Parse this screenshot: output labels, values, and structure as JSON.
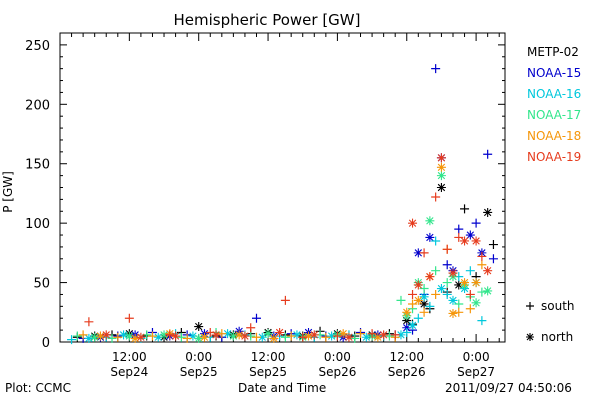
{
  "footer": {
    "left": "Plot: CCMC",
    "center": "Date and Time",
    "right": "2011/09/27 04:50:06"
  },
  "chart_data": {
    "type": "scatter",
    "title": "Hemispheric Power [GW]",
    "ylabel": "P [GW]",
    "xlabel": "Date and Time",
    "ylim": [
      0,
      260
    ],
    "yticks": [
      0,
      50,
      100,
      150,
      200,
      250
    ],
    "xlim": [
      0,
      77
    ],
    "x_units": "hours since Sep 24 00:00",
    "xticks": [
      {
        "x": 12,
        "time": "12:00",
        "date": "Sep24"
      },
      {
        "x": 24,
        "time": "0:00",
        "date": "Sep25"
      },
      {
        "x": 36,
        "time": "12:00",
        "date": "Sep25"
      },
      {
        "x": 48,
        "time": "0:00",
        "date": "Sep26"
      },
      {
        "x": 60,
        "time": "12:00",
        "date": "Sep26"
      },
      {
        "x": 72,
        "time": "0:00",
        "date": "Sep27"
      }
    ],
    "marker_legend": [
      {
        "symbol": "+",
        "label": "south"
      },
      {
        "symbol": "*",
        "label": "north"
      }
    ],
    "series": [
      {
        "name": "METP-02",
        "color": "#000000",
        "south": [
          [
            3,
            4
          ],
          [
            9,
            6
          ],
          [
            15,
            5
          ],
          [
            21,
            8
          ],
          [
            27,
            5
          ],
          [
            33,
            7
          ],
          [
            39,
            6
          ],
          [
            45,
            9
          ],
          [
            51,
            5
          ],
          [
            57,
            7
          ],
          [
            61,
            15
          ],
          [
            64,
            28
          ],
          [
            67,
            42
          ],
          [
            70,
            112
          ],
          [
            72,
            55
          ],
          [
            75,
            82
          ]
        ],
        "north": [
          [
            6,
            5
          ],
          [
            12,
            7
          ],
          [
            18,
            4
          ],
          [
            24,
            13
          ],
          [
            30,
            6
          ],
          [
            36,
            8
          ],
          [
            42,
            5
          ],
          [
            48,
            7
          ],
          [
            54,
            6
          ],
          [
            60,
            18
          ],
          [
            63,
            32
          ],
          [
            66,
            130
          ],
          [
            69,
            48
          ],
          [
            74,
            109
          ]
        ]
      },
      {
        "name": "NOAA-15",
        "color": "#0000cd",
        "south": [
          [
            4,
            3
          ],
          [
            10,
            5
          ],
          [
            16,
            8
          ],
          [
            22,
            6
          ],
          [
            28,
            4
          ],
          [
            34,
            20
          ],
          [
            40,
            7
          ],
          [
            46,
            5
          ],
          [
            52,
            8
          ],
          [
            58,
            6
          ],
          [
            61,
            10
          ],
          [
            63,
            40
          ],
          [
            65,
            230
          ],
          [
            67,
            65
          ],
          [
            69,
            95
          ],
          [
            72,
            100
          ],
          [
            74,
            158
          ],
          [
            75,
            70
          ]
        ],
        "north": [
          [
            7,
            4
          ],
          [
            13,
            6
          ],
          [
            19,
            5
          ],
          [
            25,
            7
          ],
          [
            31,
            9
          ],
          [
            37,
            5
          ],
          [
            43,
            8
          ],
          [
            49,
            4
          ],
          [
            55,
            6
          ],
          [
            60,
            12
          ],
          [
            62,
            75
          ],
          [
            64,
            88
          ],
          [
            66,
            155
          ],
          [
            68,
            60
          ],
          [
            71,
            90
          ],
          [
            73,
            75
          ]
        ]
      },
      {
        "name": "NOAA-16",
        "color": "#00c8dc",
        "south": [
          [
            2,
            2
          ],
          [
            8,
            4
          ],
          [
            14,
            3
          ],
          [
            20,
            7
          ],
          [
            26,
            4
          ],
          [
            32,
            6
          ],
          [
            38,
            5
          ],
          [
            44,
            4
          ],
          [
            50,
            6
          ],
          [
            56,
            5
          ],
          [
            60,
            8
          ],
          [
            62,
            20
          ],
          [
            64,
            30
          ],
          [
            65,
            85
          ],
          [
            67,
            40
          ],
          [
            69,
            55
          ],
          [
            71,
            60
          ],
          [
            73,
            18
          ]
        ],
        "north": [
          [
            5,
            3
          ],
          [
            11,
            6
          ],
          [
            17,
            4
          ],
          [
            23,
            5
          ],
          [
            29,
            7
          ],
          [
            35,
            4
          ],
          [
            41,
            6
          ],
          [
            47,
            5
          ],
          [
            53,
            4
          ],
          [
            59,
            6
          ],
          [
            61,
            14
          ],
          [
            63,
            38
          ],
          [
            66,
            45
          ],
          [
            68,
            35
          ],
          [
            70,
            45
          ],
          [
            72,
            50
          ]
        ]
      },
      {
        "name": "NOAA-17",
        "color": "#32e68c",
        "south": [
          [
            3,
            5
          ],
          [
            9,
            3
          ],
          [
            15,
            6
          ],
          [
            21,
            4
          ],
          [
            27,
            8
          ],
          [
            33,
            5
          ],
          [
            39,
            4
          ],
          [
            45,
            6
          ],
          [
            51,
            3
          ],
          [
            57,
            5
          ],
          [
            59,
            35
          ],
          [
            61,
            28
          ],
          [
            63,
            45
          ],
          [
            65,
            60
          ],
          [
            67,
            50
          ],
          [
            69,
            32
          ],
          [
            71,
            38
          ],
          [
            73,
            42
          ]
        ],
        "north": [
          [
            6,
            4
          ],
          [
            12,
            5
          ],
          [
            18,
            6
          ],
          [
            24,
            3
          ],
          [
            30,
            5
          ],
          [
            36,
            7
          ],
          [
            42,
            4
          ],
          [
            48,
            6
          ],
          [
            54,
            5
          ],
          [
            60,
            22
          ],
          [
            62,
            50
          ],
          [
            64,
            102
          ],
          [
            66,
            140
          ],
          [
            68,
            55
          ],
          [
            70,
            48
          ],
          [
            72,
            33
          ],
          [
            74,
            43
          ]
        ]
      },
      {
        "name": "NOAA-18",
        "color": "#f5960a",
        "south": [
          [
            4,
            6
          ],
          [
            10,
            4
          ],
          [
            16,
            5
          ],
          [
            22,
            3
          ],
          [
            28,
            7
          ],
          [
            34,
            4
          ],
          [
            40,
            5
          ],
          [
            46,
            4
          ],
          [
            52,
            7
          ],
          [
            58,
            4
          ],
          [
            61,
            32
          ],
          [
            63,
            25
          ],
          [
            65,
            40
          ],
          [
            67,
            78
          ],
          [
            69,
            25
          ],
          [
            71,
            28
          ],
          [
            73,
            65
          ]
        ],
        "north": [
          [
            7,
            5
          ],
          [
            13,
            3
          ],
          [
            19,
            7
          ],
          [
            25,
            4
          ],
          [
            31,
            6
          ],
          [
            37,
            3
          ],
          [
            43,
            5
          ],
          [
            49,
            7
          ],
          [
            55,
            4
          ],
          [
            60,
            25
          ],
          [
            62,
            35
          ],
          [
            64,
            55
          ],
          [
            66,
            147
          ],
          [
            68,
            24
          ],
          [
            70,
            50
          ],
          [
            72,
            50
          ]
        ]
      },
      {
        "name": "NOAA-19",
        "color": "#e63c1e",
        "south": [
          [
            5,
            17
          ],
          [
            12,
            20
          ],
          [
            19,
            6
          ],
          [
            26,
            8
          ],
          [
            33,
            12
          ],
          [
            39,
            35
          ],
          [
            42,
            4
          ],
          [
            48,
            5
          ],
          [
            54,
            7
          ],
          [
            58,
            6
          ],
          [
            61,
            40
          ],
          [
            63,
            75
          ],
          [
            65,
            122
          ],
          [
            67,
            78
          ],
          [
            69,
            88
          ],
          [
            71,
            40
          ],
          [
            73,
            72
          ]
        ],
        "north": [
          [
            8,
            6
          ],
          [
            14,
            4
          ],
          [
            20,
            5
          ],
          [
            27,
            6
          ],
          [
            32,
            5
          ],
          [
            38,
            8
          ],
          [
            44,
            6
          ],
          [
            50,
            4
          ],
          [
            56,
            6
          ],
          [
            61,
            100
          ],
          [
            62,
            48
          ],
          [
            64,
            55
          ],
          [
            66,
            155
          ],
          [
            68,
            58
          ],
          [
            70,
            85
          ],
          [
            72,
            85
          ],
          [
            74,
            60
          ]
        ]
      }
    ]
  }
}
